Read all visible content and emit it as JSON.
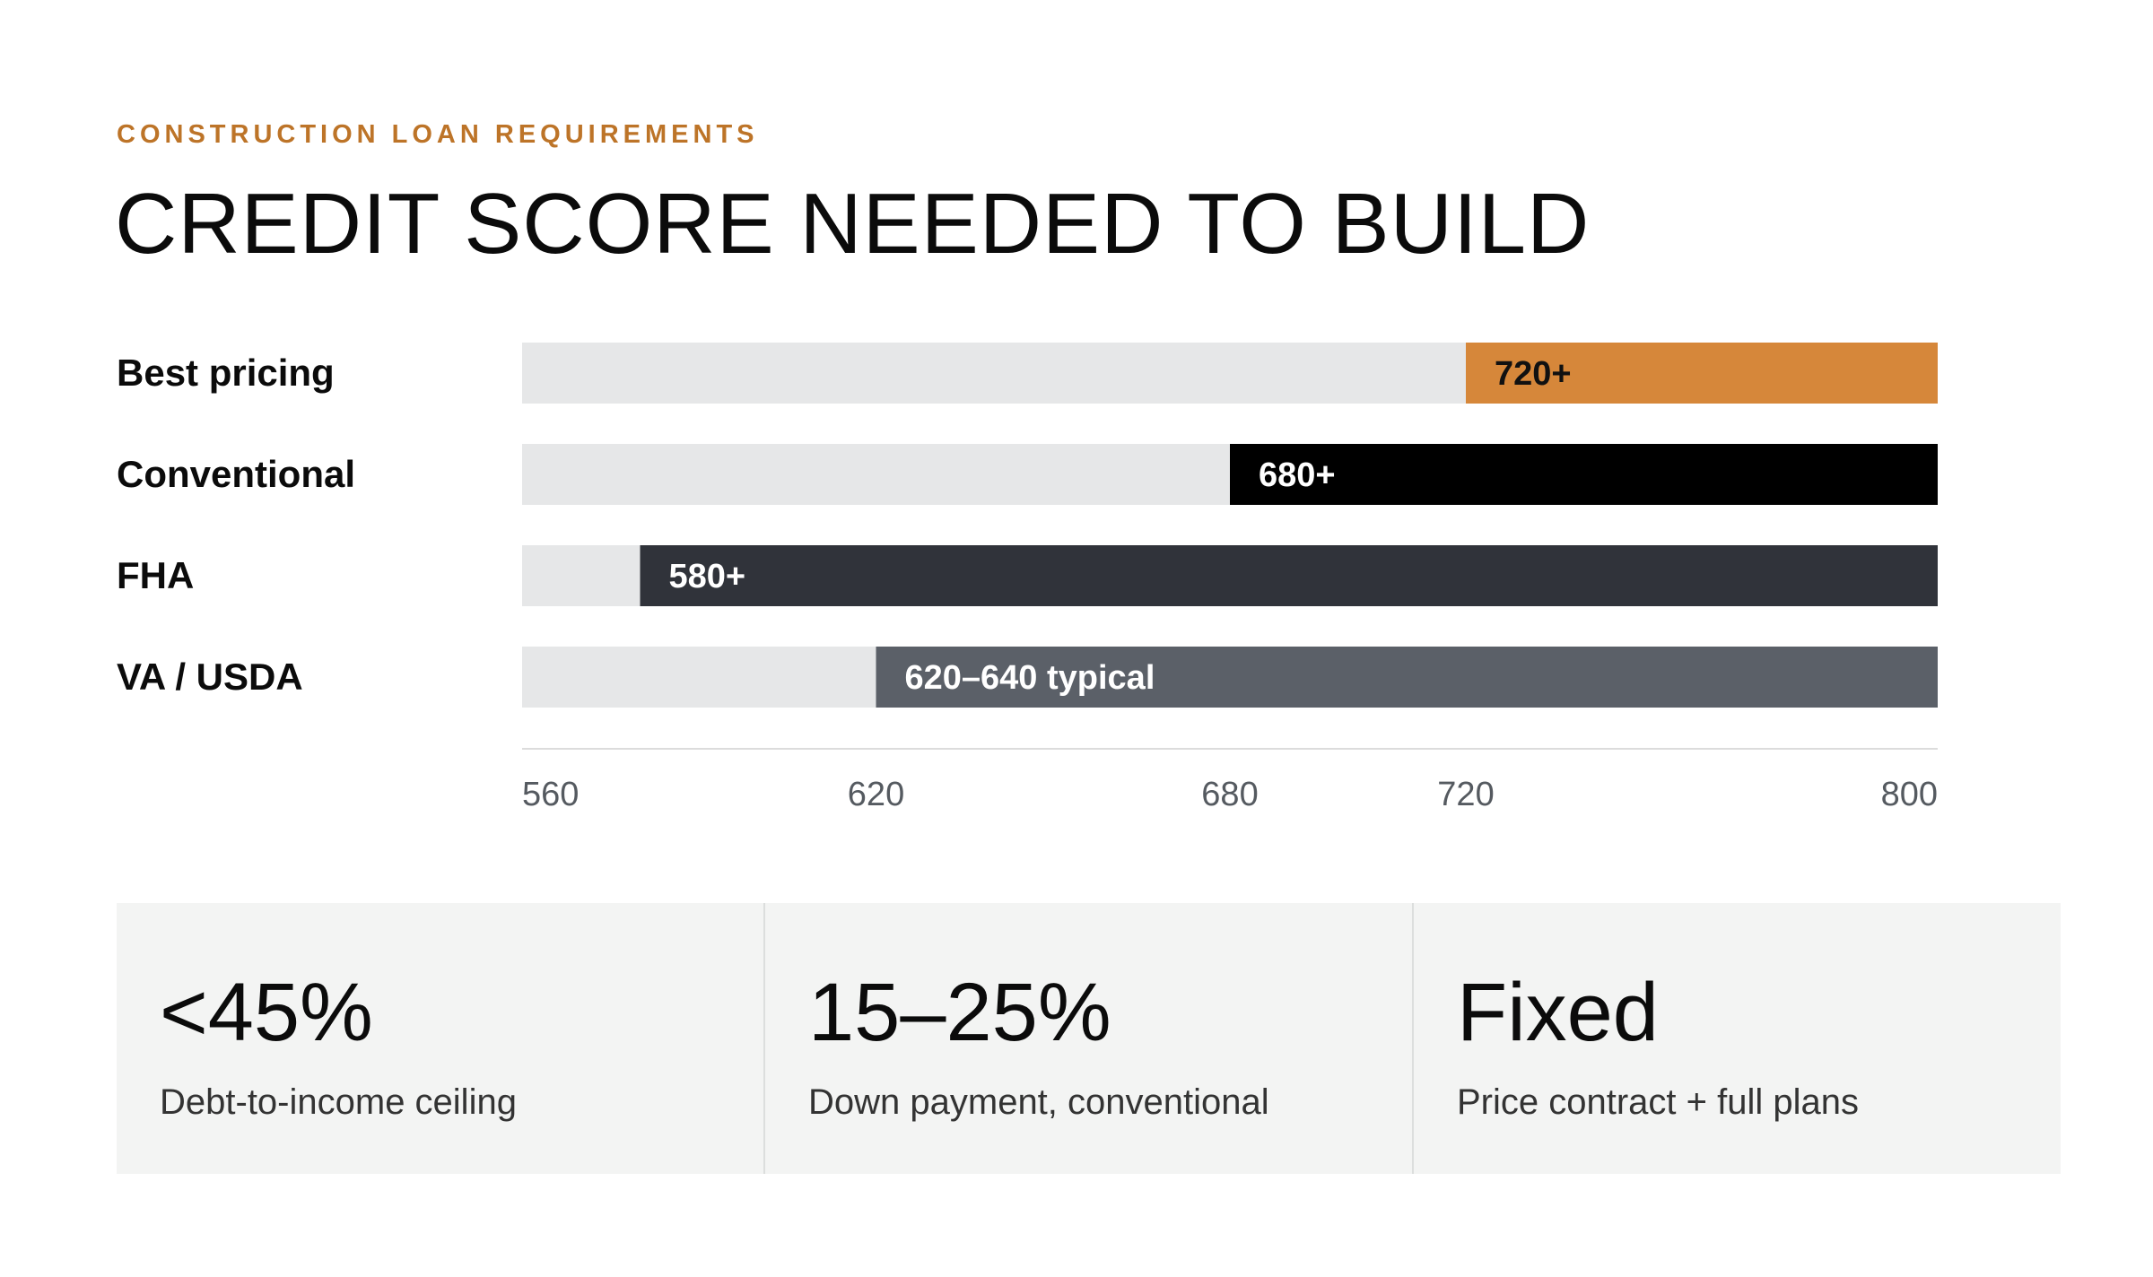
{
  "header": {
    "eyebrow": "CONSTRUCTION LOAN REQUIREMENTS",
    "title": "CREDIT SCORE NEEDED TO BUILD"
  },
  "chart_data": {
    "type": "bar",
    "orientation": "horizontal",
    "categories": [
      "Best pricing",
      "Conventional",
      "FHA",
      "VA / USDA"
    ],
    "series": [
      {
        "min_scores": [
          720,
          680,
          580,
          620
        ],
        "max_scores": [
          800,
          800,
          800,
          800
        ],
        "labels": [
          "720+",
          "680+",
          "580+",
          "620–640 typical"
        ],
        "colors": [
          "#d6873a",
          "#000000",
          "#30333a",
          "#5b6068"
        ]
      }
    ],
    "xlim": [
      560,
      800
    ],
    "x_ticks": [
      560,
      620,
      680,
      720,
      800
    ],
    "track_color": "#e6e7e8",
    "grid": false,
    "legend": "none"
  },
  "stats": [
    {
      "value": "<45%",
      "label": "Debt-to-income ceiling"
    },
    {
      "value": "15–25%",
      "label": "Down payment, conventional"
    },
    {
      "value": "Fixed",
      "label": "Price contract + full plans"
    }
  ]
}
